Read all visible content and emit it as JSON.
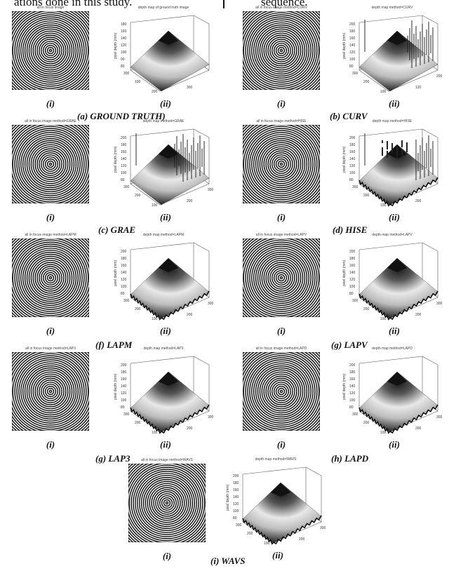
{
  "page": {
    "cut_text_left": "ations done in this study.",
    "cut_text_right": "sequence."
  },
  "panels": [
    {
      "id": "a",
      "caption": "(a) GROUND TRUTH)",
      "sub_i": "(i)",
      "sub_ii": "(ii)",
      "image_title": "all in focus image",
      "plot_title": "depth map of ground truth image",
      "spikes": 0,
      "style": "smooth",
      "ylabel": "pixel depth (mm)",
      "zticks": [
        "180",
        "160",
        "140",
        "120",
        "100",
        "90",
        "80"
      ],
      "xticks": [
        "300",
        "100",
        "200",
        "300"
      ]
    },
    {
      "id": "b",
      "caption": "(b) CURV",
      "sub_i": "(i)",
      "sub_ii": "(ii)",
      "image_title": "all in focus image method=CURV",
      "plot_title": "depth map method=CURV",
      "spikes": 14,
      "style": "spiky",
      "ylabel": "pixel depth (mm)",
      "zticks": [
        "200",
        "180",
        "160",
        "140",
        "120",
        "100",
        "80"
      ],
      "xticks": [
        "300",
        "200",
        "100",
        "120",
        "200"
      ]
    },
    {
      "id": "c",
      "caption": "(c) GRAE",
      "sub_i": "(i)",
      "sub_ii": "(ii)",
      "image_title": "all in focus image method=GRAE",
      "plot_title": "depth map method=GRAE",
      "spikes": 16,
      "style": "spiky",
      "ylabel": "pixel depth (mm)",
      "zticks": [
        "200",
        "180",
        "160",
        "140",
        "120",
        "100",
        "80"
      ],
      "xticks": [
        "300",
        "200",
        "100",
        "200",
        "300"
      ]
    },
    {
      "id": "d",
      "caption": "(d) HISE",
      "sub_i": "(i)",
      "sub_ii": "(ii)",
      "image_title": "all in focus image method=HISE",
      "plot_title": "depth map method=HISE",
      "spikes": 10,
      "style": "noisy",
      "ylabel": "pixel depth (mm)",
      "zticks": [
        "200",
        "180",
        "160",
        "140",
        "120",
        "100",
        "80"
      ],
      "xticks": [
        "300",
        "200",
        "100",
        "200"
      ]
    },
    {
      "id": "f",
      "caption": "(f) LAPM",
      "sub_i": "(i)",
      "sub_ii": "(ii)",
      "image_title": "all in focus image method=LAPM",
      "plot_title": "depth map method=LAPM",
      "spikes": 0,
      "style": "jagged",
      "ylabel": "pixel depth (mm)",
      "zticks": [
        "200",
        "180",
        "160",
        "140",
        "120",
        "100",
        "80"
      ],
      "xticks": [
        "300",
        "200",
        "100",
        "200",
        "300"
      ]
    },
    {
      "id": "g1",
      "caption": "(g) LAPV",
      "sub_i": "(i)",
      "sub_ii": "(ii)",
      "image_title": "all in focus image method=LAPV",
      "plot_title": "depth map method=LAPV",
      "spikes": 0,
      "style": "jagged",
      "ylabel": "pixel depth (mm)",
      "zticks": [
        "200",
        "180",
        "160",
        "140",
        "120",
        "100",
        "80"
      ],
      "xticks": [
        "300",
        "200",
        "100",
        "200",
        "300"
      ]
    },
    {
      "id": "g2",
      "caption": "(g) LAP3",
      "sub_i": "(i)",
      "sub_ii": "(ii)",
      "image_title": "all in focus image method=LAP3",
      "plot_title": "depth map method=LAP3",
      "spikes": 0,
      "style": "jagged",
      "ylabel": "pixel depth (mm)",
      "zticks": [
        "200",
        "180",
        "160",
        "140",
        "120",
        "100",
        "80"
      ],
      "xticks": [
        "300",
        "200",
        "100",
        "200",
        "300"
      ]
    },
    {
      "id": "h",
      "caption": "(h) LAPD",
      "sub_i": "(i)",
      "sub_ii": "(ii)",
      "image_title": "all in focus image method=LAPD",
      "plot_title": "depth map method=LAPD",
      "spikes": 0,
      "style": "jagged",
      "ylabel": "pixel depth (mm)",
      "zticks": [
        "200",
        "180",
        "160",
        "140",
        "120",
        "100",
        "80"
      ],
      "xticks": [
        "300",
        "200",
        "100",
        "200",
        "300"
      ]
    },
    {
      "id": "i",
      "caption": "(i) WAVS",
      "sub_i": "(i)",
      "sub_ii": "(ii)",
      "image_title": "all in focus image method=WAVS",
      "plot_title": "depth map method=WAVS",
      "spikes": 0,
      "style": "jagged",
      "ylabel": "pixel depth (mm)",
      "zticks": [
        "200",
        "180",
        "160",
        "140",
        "120",
        "100",
        "80"
      ],
      "xticks": [
        "300",
        "200",
        "100",
        "200",
        "300"
      ]
    }
  ]
}
